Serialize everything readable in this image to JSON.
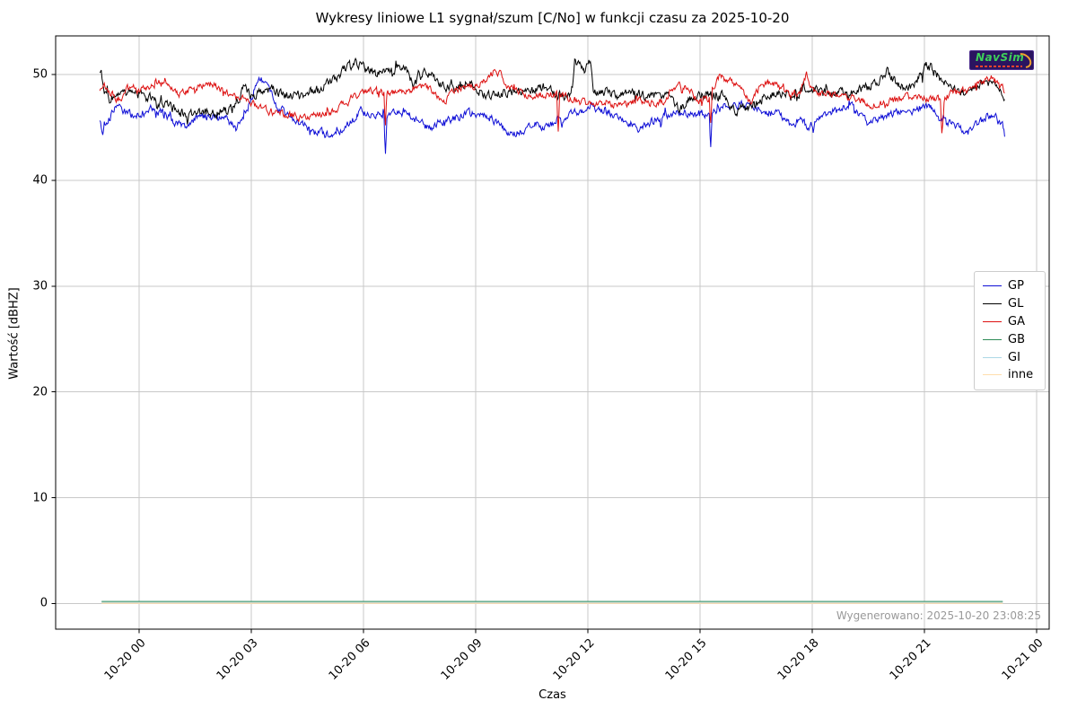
{
  "chart_data": {
    "type": "line",
    "title": "Wykresy liniowe L1 sygnał/szum [C/No] w funkcji czasu za 2025-10-20",
    "xlabel": "Czas",
    "ylabel": "Wartość [dBHZ]",
    "x_time_base": "2025-10-20 00:00",
    "x_unit": "hours",
    "xlim_hours": [
      -2.23,
      24.34
    ],
    "ylim": [
      -2.43,
      53.65
    ],
    "grid": true,
    "legend_position": "right",
    "x_tick_labels": [
      "10-20 00",
      "10-20 03",
      "10-20 06",
      "10-20 09",
      "10-20 12",
      "10-20 15",
      "10-20 18",
      "10-20 21",
      "10-21 00"
    ],
    "x_tick_hours": [
      0,
      3,
      6,
      9,
      12,
      15,
      18,
      21,
      24
    ],
    "y_ticks": [
      0,
      10,
      20,
      30,
      40,
      50
    ],
    "grid_color": "#c8c8c8",
    "axis_color": "#000000",
    "series": [
      {
        "name": "GP",
        "color": "#0f0fd6",
        "noise_amp": 0.32,
        "points": [
          [
            -1.05,
            45.6
          ],
          [
            -0.98,
            44.5
          ],
          [
            -0.9,
            44.9
          ],
          [
            -0.75,
            46.2
          ],
          [
            -0.6,
            46.9
          ],
          [
            -0.3,
            46.3
          ],
          [
            0,
            46.1
          ],
          [
            0.3,
            46.7
          ],
          [
            0.6,
            46.3
          ],
          [
            0.9,
            45.6
          ],
          [
            1.2,
            45.0
          ],
          [
            1.5,
            45.9
          ],
          [
            1.9,
            46.1
          ],
          [
            2.3,
            45.7
          ],
          [
            2.6,
            44.9
          ],
          [
            2.9,
            46.8
          ],
          [
            3.1,
            48.8
          ],
          [
            3.3,
            49.9
          ],
          [
            3.45,
            49.3
          ],
          [
            3.7,
            47.0
          ],
          [
            4.0,
            46.0
          ],
          [
            4.3,
            45.4
          ],
          [
            4.7,
            44.6
          ],
          [
            5.0,
            44.3
          ],
          [
            5.3,
            44.2
          ],
          [
            5.6,
            45.4
          ],
          [
            5.9,
            46.6
          ],
          [
            6.2,
            46.2
          ],
          [
            6.45,
            46.0
          ],
          [
            6.56,
            46.0
          ],
          [
            6.58,
            41.6
          ],
          [
            6.63,
            46.2
          ],
          [
            6.9,
            46.6
          ],
          [
            7.2,
            46.3
          ],
          [
            7.5,
            45.4
          ],
          [
            7.8,
            44.9
          ],
          [
            8.1,
            45.6
          ],
          [
            8.5,
            45.9
          ],
          [
            8.8,
            46.3
          ],
          [
            9.3,
            46.2
          ],
          [
            9.6,
            45.3
          ],
          [
            9.9,
            44.5
          ],
          [
            10.2,
            44.5
          ],
          [
            10.6,
            45.4
          ],
          [
            10.9,
            45.0
          ],
          [
            11.3,
            46.0
          ],
          [
            11.8,
            46.6
          ],
          [
            12.1,
            46.9
          ],
          [
            12.6,
            46.4
          ],
          [
            13.0,
            45.7
          ],
          [
            13.45,
            44.8
          ],
          [
            13.8,
            45.8
          ],
          [
            14.2,
            46.2
          ],
          [
            14.6,
            46.4
          ],
          [
            15.0,
            46.3
          ],
          [
            15.26,
            46.2
          ],
          [
            15.28,
            42.8
          ],
          [
            15.33,
            46.3
          ],
          [
            15.6,
            46.9
          ],
          [
            15.9,
            47.0
          ],
          [
            16.3,
            47.2
          ],
          [
            16.7,
            46.5
          ],
          [
            17.1,
            46.2
          ],
          [
            17.45,
            45.2
          ],
          [
            17.7,
            45.6
          ],
          [
            17.95,
            45.0
          ],
          [
            18.3,
            46.3
          ],
          [
            18.7,
            46.6
          ],
          [
            19.1,
            46.9
          ],
          [
            19.5,
            45.3
          ],
          [
            19.9,
            46.0
          ],
          [
            20.3,
            46.5
          ],
          [
            20.7,
            46.6
          ],
          [
            21.05,
            47.2
          ],
          [
            21.4,
            45.9
          ],
          [
            21.8,
            45.2
          ],
          [
            22.1,
            44.7
          ],
          [
            22.5,
            45.6
          ],
          [
            22.8,
            46.2
          ],
          [
            23.0,
            45.6
          ],
          [
            23.1,
            45.2
          ],
          [
            23.15,
            44.4
          ]
        ]
      },
      {
        "name": "GL",
        "color": "#000000",
        "noise_amp": 0.38,
        "points": [
          [
            -1.05,
            49.8
          ],
          [
            -1.02,
            50.4
          ],
          [
            -0.95,
            48.5
          ],
          [
            -0.8,
            47.7
          ],
          [
            -0.5,
            48.2
          ],
          [
            -0.2,
            48.4
          ],
          [
            0.1,
            48.0
          ],
          [
            0.4,
            47.6
          ],
          [
            0.7,
            47.2
          ],
          [
            1.0,
            46.6
          ],
          [
            1.3,
            46.2
          ],
          [
            1.7,
            46.5
          ],
          [
            2.1,
            46.4
          ],
          [
            2.5,
            46.7
          ],
          [
            2.84,
            48.9
          ],
          [
            3.0,
            47.8
          ],
          [
            3.3,
            48.4
          ],
          [
            3.6,
            48.7
          ],
          [
            3.9,
            48.0
          ],
          [
            4.2,
            47.9
          ],
          [
            4.5,
            48.3
          ],
          [
            4.8,
            48.6
          ],
          [
            5.1,
            49.2
          ],
          [
            5.4,
            50.2
          ],
          [
            5.8,
            51.0
          ],
          [
            6.1,
            50.6
          ],
          [
            6.35,
            50.0
          ],
          [
            6.6,
            50.3
          ],
          [
            6.9,
            50.6
          ],
          [
            7.1,
            51.0
          ],
          [
            7.35,
            48.9
          ],
          [
            7.6,
            50.3
          ],
          [
            7.9,
            49.7
          ],
          [
            8.2,
            48.8
          ],
          [
            8.5,
            48.7
          ],
          [
            8.8,
            49.3
          ],
          [
            9.1,
            48.4
          ],
          [
            9.4,
            48.0
          ],
          [
            9.7,
            48.2
          ],
          [
            10.1,
            48.5
          ],
          [
            10.5,
            48.3
          ],
          [
            10.9,
            48.9
          ],
          [
            11.2,
            47.9
          ],
          [
            11.45,
            48.1
          ],
          [
            11.6,
            48.2
          ],
          [
            11.64,
            51.1
          ],
          [
            11.8,
            51.0
          ],
          [
            11.93,
            49.9
          ],
          [
            12.0,
            51.2
          ],
          [
            12.1,
            50.8
          ],
          [
            12.14,
            48.4
          ],
          [
            12.5,
            48.4
          ],
          [
            12.9,
            48.0
          ],
          [
            13.3,
            48.3
          ],
          [
            13.7,
            47.9
          ],
          [
            14.1,
            48.1
          ],
          [
            14.45,
            46.8
          ],
          [
            14.8,
            47.8
          ],
          [
            15.2,
            48.1
          ],
          [
            15.6,
            47.9
          ],
          [
            16.0,
            46.6
          ],
          [
            16.35,
            46.9
          ],
          [
            16.7,
            47.8
          ],
          [
            17.1,
            48.2
          ],
          [
            17.5,
            47.9
          ],
          [
            17.9,
            48.9
          ],
          [
            18.3,
            48.2
          ],
          [
            18.7,
            48.5
          ],
          [
            19.0,
            48.1
          ],
          [
            19.4,
            48.6
          ],
          [
            19.8,
            49.6
          ],
          [
            20.0,
            50.3
          ],
          [
            20.2,
            49.4
          ],
          [
            20.5,
            48.7
          ],
          [
            20.8,
            49.3
          ],
          [
            21.05,
            51.0
          ],
          [
            21.2,
            50.5
          ],
          [
            21.5,
            49.4
          ],
          [
            21.8,
            48.6
          ],
          [
            22.1,
            48.3
          ],
          [
            22.4,
            49.0
          ],
          [
            22.6,
            49.4
          ],
          [
            22.9,
            49.0
          ],
          [
            23.05,
            48.8
          ],
          [
            23.15,
            48.0
          ]
        ]
      },
      {
        "name": "GA",
        "color": "#dd1111",
        "noise_amp": 0.3,
        "points": [
          [
            -1.05,
            48.6
          ],
          [
            -0.95,
            49.0
          ],
          [
            -0.8,
            48.4
          ],
          [
            -0.57,
            47.6
          ],
          [
            -0.3,
            48.6
          ],
          [
            0,
            48.5
          ],
          [
            0.3,
            48.9
          ],
          [
            0.5,
            49.2
          ],
          [
            0.8,
            48.8
          ],
          [
            1.1,
            48.2
          ],
          [
            1.4,
            48.6
          ],
          [
            1.8,
            49.2
          ],
          [
            2.1,
            48.8
          ],
          [
            2.4,
            48.2
          ],
          [
            2.8,
            47.6
          ],
          [
            3.2,
            47.0
          ],
          [
            3.5,
            46.5
          ],
          [
            3.9,
            46.3
          ],
          [
            4.3,
            45.9
          ],
          [
            4.7,
            46.2
          ],
          [
            5.1,
            46.3
          ],
          [
            5.5,
            47.3
          ],
          [
            5.8,
            47.9
          ],
          [
            6.1,
            48.4
          ],
          [
            6.35,
            48.6
          ],
          [
            6.56,
            48.2
          ],
          [
            6.58,
            43.9
          ],
          [
            6.63,
            48.2
          ],
          [
            6.9,
            48.3
          ],
          [
            7.2,
            48.5
          ],
          [
            7.55,
            48.9
          ],
          [
            7.9,
            48.2
          ],
          [
            8.15,
            47.3
          ],
          [
            8.5,
            48.7
          ],
          [
            8.8,
            48.8
          ],
          [
            9.1,
            49.0
          ],
          [
            9.35,
            49.8
          ],
          [
            9.5,
            50.3
          ],
          [
            9.7,
            49.9
          ],
          [
            9.9,
            48.6
          ],
          [
            10.3,
            48.2
          ],
          [
            10.7,
            48.0
          ],
          [
            11.0,
            48.1
          ],
          [
            11.18,
            48.2
          ],
          [
            11.2,
            43.7
          ],
          [
            11.25,
            48.0
          ],
          [
            11.7,
            47.5
          ],
          [
            12.1,
            47.1
          ],
          [
            12.5,
            47.4
          ],
          [
            12.9,
            47.2
          ],
          [
            13.3,
            47.5
          ],
          [
            13.7,
            47.3
          ],
          [
            14.05,
            47.6
          ],
          [
            14.3,
            48.9
          ],
          [
            14.7,
            48.8
          ],
          [
            14.95,
            47.5
          ],
          [
            15.26,
            47.8
          ],
          [
            15.28,
            44.5
          ],
          [
            15.33,
            48.6
          ],
          [
            15.5,
            49.7
          ],
          [
            15.8,
            49.4
          ],
          [
            16.1,
            48.8
          ],
          [
            16.35,
            47.2
          ],
          [
            16.6,
            48.9
          ],
          [
            16.9,
            49.3
          ],
          [
            17.15,
            48.6
          ],
          [
            17.4,
            48.0
          ],
          [
            17.7,
            48.5
          ],
          [
            17.85,
            50.1
          ],
          [
            18.0,
            48.4
          ],
          [
            18.4,
            48.2
          ],
          [
            18.8,
            47.8
          ],
          [
            19.2,
            47.6
          ],
          [
            19.6,
            47.2
          ],
          [
            20.0,
            47.4
          ],
          [
            20.4,
            47.7
          ],
          [
            20.8,
            48.0
          ],
          [
            21.1,
            47.6
          ],
          [
            21.43,
            47.7
          ],
          [
            21.47,
            44.3
          ],
          [
            21.55,
            47.9
          ],
          [
            21.9,
            48.4
          ],
          [
            22.2,
            48.6
          ],
          [
            22.5,
            49.1
          ],
          [
            22.8,
            49.6
          ],
          [
            23.0,
            48.9
          ],
          [
            23.1,
            48.6
          ],
          [
            23.15,
            48.1
          ]
        ]
      },
      {
        "name": "GB",
        "color": "#2e8b57",
        "noise_amp": 0,
        "points": [
          [
            -1.0,
            0
          ],
          [
            23.1,
            0
          ]
        ]
      },
      {
        "name": "GI",
        "color": "#add8e6",
        "noise_amp": 0,
        "points": [
          [
            -1.0,
            0
          ],
          [
            23.1,
            0
          ]
        ]
      },
      {
        "name": "inne",
        "color": "#ffdead",
        "noise_amp": 0,
        "points": [
          [
            -1.0,
            0
          ],
          [
            23.1,
            0
          ]
        ]
      }
    ]
  },
  "generated_note": "Wygenerowano: 2025-10-20 23:08:25",
  "logo": {
    "text": "NavSim",
    "bg_color": "#2a1460",
    "text_color": "#3ecf5a",
    "swoosh_color": "#f0a030",
    "accent_color": "#e8432d"
  }
}
